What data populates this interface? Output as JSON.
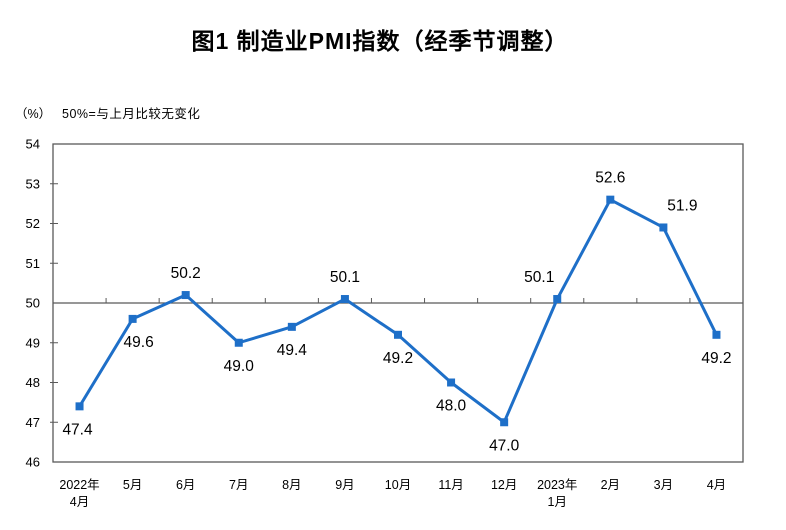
{
  "chart_data": {
    "type": "line",
    "title": "图1 制造业PMI指数（经季节调整）",
    "unit_label": "（%）",
    "note": "50%=与上月比较无变化",
    "categories": [
      "2022年\n4月",
      "5月",
      "6月",
      "7月",
      "8月",
      "9月",
      "10月",
      "11月",
      "12月",
      "2023年\n1月",
      "2月",
      "3月",
      "4月"
    ],
    "series": [
      {
        "name": "制造业PMI",
        "values": [
          47.4,
          49.6,
          50.2,
          49.0,
          49.4,
          50.1,
          49.2,
          48.0,
          47.0,
          50.1,
          52.6,
          51.9,
          49.2
        ]
      }
    ],
    "data_label_format": "0.1f",
    "label_positions": [
      "below",
      "below",
      "above",
      "below",
      "below",
      "above",
      "below",
      "below",
      "below",
      "above",
      "above",
      "above",
      "below"
    ],
    "label_dx": [
      -2,
      6,
      0,
      0,
      0,
      0,
      0,
      0,
      0,
      -18,
      0,
      19,
      0
    ],
    "ylim": [
      46,
      54
    ],
    "ytick_step": 1,
    "yticks": [
      46,
      47,
      48,
      49,
      50,
      51,
      52,
      53,
      54
    ],
    "reference_line_y": 50,
    "grid": "off",
    "legend": "none",
    "colors": {
      "line": "#1E6FC8",
      "marker": "#1E6FC8",
      "axis": "#595959",
      "text": "#000000"
    }
  }
}
